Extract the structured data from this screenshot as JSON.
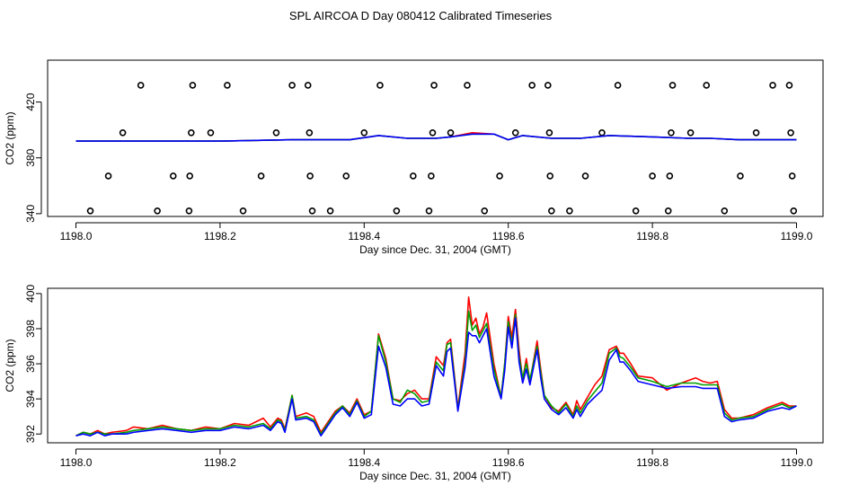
{
  "chart_data": [
    {
      "type": "line",
      "title": "SPL AIRCOA D  Day 080412  Calibrated Timeseries",
      "xlabel": "Day since Dec. 31, 2004 (GMT)",
      "ylabel": "CO2 (ppm)",
      "xlim": [
        1198.0,
        1199.0
      ],
      "ylim": [
        338,
        450
      ],
      "xticks": [
        1198.0,
        1198.2,
        1198.4,
        1198.6,
        1198.8,
        1199.0
      ],
      "xtick_labels": [
        "1198.0",
        "1198.2",
        "1198.4",
        "1198.6",
        "1198.8",
        "1199.0"
      ],
      "yticks": [
        340,
        380,
        420
      ],
      "ytick_labels": [
        "340",
        "380",
        "420"
      ],
      "series": [
        {
          "name": "red",
          "color": "#ff0000",
          "x": [
            1198.0,
            1198.1,
            1198.2,
            1198.3,
            1198.38,
            1198.42,
            1198.46,
            1198.5,
            1198.52,
            1198.55,
            1198.58,
            1198.6,
            1198.62,
            1198.66,
            1198.7,
            1198.74,
            1198.8,
            1198.85,
            1198.88,
            1198.92,
            1199.0
          ],
          "y": [
            392,
            392,
            392,
            393,
            393,
            396,
            394,
            394,
            395,
            398,
            397,
            393,
            396,
            394,
            394,
            396,
            395,
            394,
            394,
            393,
            393
          ]
        },
        {
          "name": "green",
          "color": "#00a000",
          "x": [
            1198.0,
            1198.1,
            1198.2,
            1198.3,
            1198.38,
            1198.42,
            1198.46,
            1198.5,
            1198.52,
            1198.55,
            1198.58,
            1198.6,
            1198.62,
            1198.66,
            1198.7,
            1198.74,
            1198.8,
            1198.85,
            1198.88,
            1198.92,
            1199.0
          ],
          "y": [
            392,
            392,
            392,
            393,
            393,
            396,
            394,
            394,
            395,
            397,
            397,
            393,
            396,
            394,
            394,
            396,
            395,
            394,
            394,
            393,
            393
          ]
        },
        {
          "name": "blue",
          "color": "#0000ff",
          "x": [
            1198.0,
            1198.1,
            1198.2,
            1198.3,
            1198.38,
            1198.42,
            1198.46,
            1198.5,
            1198.52,
            1198.55,
            1198.58,
            1198.6,
            1198.62,
            1198.66,
            1198.7,
            1198.74,
            1198.8,
            1198.85,
            1198.88,
            1198.92,
            1199.0
          ],
          "y": [
            392,
            392,
            392,
            393,
            393,
            396,
            394,
            394,
            395,
            397,
            397,
            393,
            396,
            394,
            394,
            396,
            395,
            394,
            394,
            393,
            393
          ]
        }
      ],
      "markers": {
        "name": "open circles",
        "color": "#000000",
        "x": [
          1198.02,
          1198.045,
          1198.065,
          1198.09,
          1198.113,
          1198.135,
          1198.157,
          1198.158,
          1198.16,
          1198.162,
          1198.187,
          1198.21,
          1198.232,
          1198.257,
          1198.278,
          1198.3,
          1198.322,
          1198.324,
          1198.325,
          1198.328,
          1198.353,
          1198.375,
          1198.4,
          1198.422,
          1198.445,
          1198.468,
          1198.49,
          1198.493,
          1198.495,
          1198.497,
          1198.52,
          1198.543,
          1198.567,
          1198.588,
          1198.61,
          1198.633,
          1198.655,
          1198.657,
          1198.658,
          1198.66,
          1198.685,
          1198.707,
          1198.73,
          1198.752,
          1198.777,
          1198.8,
          1198.822,
          1198.824,
          1198.826,
          1198.828,
          1198.853,
          1198.875,
          1198.9,
          1198.922,
          1198.944,
          1198.967,
          1198.99,
          1198.992,
          1198.994,
          1198.996
        ],
        "y": [
          342,
          367,
          398,
          432,
          342,
          367,
          342,
          367,
          398,
          432,
          398,
          432,
          342,
          367,
          398,
          432,
          432,
          398,
          367,
          342,
          342,
          367,
          398,
          432,
          342,
          367,
          342,
          367,
          398,
          432,
          398,
          432,
          342,
          367,
          398,
          432,
          432,
          398,
          367,
          342,
          342,
          367,
          398,
          432,
          342,
          367,
          342,
          367,
          398,
          432,
          398,
          432,
          342,
          367,
          398,
          432,
          432,
          398,
          367,
          342
        ]
      }
    },
    {
      "type": "line",
      "title": "",
      "xlabel": "Day since Dec. 31, 2004 (GMT)",
      "ylabel": "CO2 (ppm)",
      "xlim": [
        1198.0,
        1199.0
      ],
      "ylim": [
        391.5,
        400.3
      ],
      "xticks": [
        1198.0,
        1198.2,
        1198.4,
        1198.6,
        1198.8,
        1199.0
      ],
      "xtick_labels": [
        "1198.0",
        "1198.2",
        "1198.4",
        "1198.6",
        "1198.8",
        "1199.0"
      ],
      "yticks": [
        392,
        394,
        396,
        398,
        400
      ],
      "ytick_labels": [
        "392",
        "394",
        "396",
        "398",
        "400"
      ],
      "series": [
        {
          "name": "red",
          "color": "#ff0000",
          "x": [
            1198.0,
            1198.01,
            1198.02,
            1198.03,
            1198.04,
            1198.05,
            1198.07,
            1198.08,
            1198.1,
            1198.12,
            1198.14,
            1198.16,
            1198.18,
            1198.2,
            1198.22,
            1198.24,
            1198.26,
            1198.27,
            1198.28,
            1198.285,
            1198.29,
            1198.3,
            1198.305,
            1198.32,
            1198.33,
            1198.34,
            1198.355,
            1198.36,
            1198.37,
            1198.38,
            1198.39,
            1198.4,
            1198.41,
            1198.42,
            1198.43,
            1198.44,
            1198.45,
            1198.46,
            1198.47,
            1198.48,
            1198.49,
            1198.5,
            1198.51,
            1198.515,
            1198.52,
            1198.53,
            1198.54,
            1198.545,
            1198.55,
            1198.555,
            1198.56,
            1198.565,
            1198.57,
            1198.58,
            1198.59,
            1198.595,
            1198.6,
            1198.605,
            1198.61,
            1198.615,
            1198.62,
            1198.625,
            1198.63,
            1198.64,
            1198.645,
            1198.65,
            1198.66,
            1198.67,
            1198.68,
            1198.69,
            1198.695,
            1198.7,
            1198.71,
            1198.72,
            1198.73,
            1198.74,
            1198.75,
            1198.755,
            1198.76,
            1198.77,
            1198.78,
            1198.8,
            1198.82,
            1198.84,
            1198.86,
            1198.87,
            1198.88,
            1198.89,
            1198.9,
            1198.91,
            1198.92,
            1198.94,
            1198.96,
            1198.98,
            1198.99,
            1199.0
          ],
          "y": [
            391.9,
            392.1,
            392.0,
            392.2,
            392.0,
            392.1,
            392.2,
            392.4,
            392.3,
            392.5,
            392.3,
            392.2,
            392.4,
            392.3,
            392.6,
            392.5,
            392.9,
            392.4,
            392.9,
            392.8,
            392.3,
            394.2,
            393.0,
            393.2,
            393.0,
            392.1,
            393.0,
            393.3,
            393.6,
            393.2,
            394.0,
            393.1,
            393.3,
            397.7,
            396.3,
            394.0,
            393.9,
            394.3,
            394.5,
            394.0,
            394.0,
            396.4,
            395.9,
            397.2,
            397.4,
            393.5,
            396.6,
            399.8,
            398.2,
            398.6,
            397.7,
            398.1,
            398.9,
            396.0,
            394.1,
            396.0,
            398.7,
            397.5,
            399.1,
            396.8,
            395.1,
            396.3,
            395.0,
            397.3,
            395.7,
            394.2,
            393.5,
            393.3,
            393.8,
            393.1,
            393.9,
            393.4,
            394.1,
            394.8,
            395.3,
            396.8,
            397.0,
            396.6,
            396.6,
            396.0,
            395.3,
            395.2,
            394.5,
            394.9,
            395.2,
            395.0,
            394.9,
            395.0,
            393.4,
            392.9,
            392.9,
            393.1,
            393.5,
            393.8,
            393.6,
            393.6
          ]
        },
        {
          "name": "green",
          "color": "#00a000",
          "x": [
            1198.0,
            1198.01,
            1198.02,
            1198.03,
            1198.04,
            1198.05,
            1198.07,
            1198.08,
            1198.1,
            1198.12,
            1198.14,
            1198.16,
            1198.18,
            1198.2,
            1198.22,
            1198.24,
            1198.26,
            1198.27,
            1198.28,
            1198.285,
            1198.29,
            1198.3,
            1198.305,
            1198.32,
            1198.33,
            1198.34,
            1198.355,
            1198.36,
            1198.37,
            1198.38,
            1198.39,
            1198.4,
            1198.41,
            1198.42,
            1198.43,
            1198.44,
            1198.45,
            1198.46,
            1198.47,
            1198.48,
            1198.49,
            1198.5,
            1198.51,
            1198.515,
            1198.52,
            1198.53,
            1198.54,
            1198.545,
            1198.55,
            1198.555,
            1198.56,
            1198.565,
            1198.57,
            1198.58,
            1198.59,
            1198.595,
            1198.6,
            1198.605,
            1198.61,
            1198.615,
            1198.62,
            1198.625,
            1198.63,
            1198.64,
            1198.645,
            1198.65,
            1198.66,
            1198.67,
            1198.68,
            1198.69,
            1198.695,
            1198.7,
            1198.71,
            1198.72,
            1198.73,
            1198.74,
            1198.75,
            1198.755,
            1198.76,
            1198.77,
            1198.78,
            1198.8,
            1198.82,
            1198.84,
            1198.86,
            1198.87,
            1198.88,
            1198.89,
            1198.9,
            1198.91,
            1198.92,
            1198.94,
            1198.96,
            1198.98,
            1198.99,
            1199.0
          ],
          "y": [
            391.9,
            392.1,
            392.0,
            392.1,
            392.0,
            392.0,
            392.1,
            392.2,
            392.3,
            392.4,
            392.3,
            392.2,
            392.3,
            392.3,
            392.5,
            392.4,
            392.6,
            392.3,
            392.8,
            392.7,
            392.2,
            394.2,
            392.9,
            393.0,
            392.8,
            392.0,
            392.9,
            393.2,
            393.6,
            393.1,
            393.9,
            393.0,
            393.3,
            397.6,
            396.1,
            394.0,
            393.8,
            394.5,
            394.3,
            393.8,
            393.9,
            396.1,
            395.6,
            397.1,
            397.2,
            393.4,
            396.1,
            399.0,
            397.9,
            398.2,
            397.5,
            397.9,
            398.3,
            395.7,
            394.1,
            396.0,
            398.4,
            397.1,
            398.8,
            396.4,
            395.2,
            396.0,
            395.1,
            397.0,
            395.5,
            394.2,
            393.6,
            393.2,
            393.7,
            393.0,
            393.6,
            393.2,
            393.9,
            394.4,
            394.9,
            396.6,
            396.9,
            396.4,
            396.3,
            395.8,
            395.2,
            395.0,
            394.7,
            394.9,
            394.9,
            394.8,
            394.8,
            394.8,
            393.2,
            392.8,
            392.9,
            393.0,
            393.4,
            393.7,
            393.5,
            393.6
          ]
        },
        {
          "name": "blue",
          "color": "#0000ff",
          "x": [
            1198.0,
            1198.01,
            1198.02,
            1198.03,
            1198.04,
            1198.05,
            1198.07,
            1198.08,
            1198.1,
            1198.12,
            1198.14,
            1198.16,
            1198.18,
            1198.2,
            1198.22,
            1198.24,
            1198.26,
            1198.27,
            1198.28,
            1198.285,
            1198.29,
            1198.3,
            1198.305,
            1198.32,
            1198.33,
            1198.34,
            1198.355,
            1198.36,
            1198.37,
            1198.38,
            1198.39,
            1198.4,
            1198.41,
            1198.42,
            1198.43,
            1198.44,
            1198.45,
            1198.46,
            1198.47,
            1198.48,
            1198.49,
            1198.5,
            1198.51,
            1198.515,
            1198.52,
            1198.53,
            1198.54,
            1198.545,
            1198.55,
            1198.555,
            1198.56,
            1198.565,
            1198.57,
            1198.58,
            1198.59,
            1198.595,
            1198.6,
            1198.605,
            1198.61,
            1198.615,
            1198.62,
            1198.625,
            1198.63,
            1198.64,
            1198.645,
            1198.65,
            1198.66,
            1198.67,
            1198.68,
            1198.69,
            1198.695,
            1198.7,
            1198.71,
            1198.72,
            1198.73,
            1198.74,
            1198.75,
            1198.755,
            1198.76,
            1198.77,
            1198.78,
            1198.8,
            1198.82,
            1198.84,
            1198.86,
            1198.87,
            1198.88,
            1198.89,
            1198.9,
            1198.91,
            1198.92,
            1198.94,
            1198.96,
            1198.98,
            1198.99,
            1199.0
          ],
          "y": [
            391.9,
            392.0,
            391.9,
            392.1,
            391.9,
            392.0,
            392.0,
            392.1,
            392.2,
            392.3,
            392.2,
            392.1,
            392.2,
            392.2,
            392.4,
            392.3,
            392.5,
            392.2,
            392.7,
            392.6,
            392.1,
            394.0,
            392.8,
            392.9,
            392.7,
            391.9,
            392.8,
            393.1,
            393.5,
            393.0,
            393.8,
            392.9,
            393.1,
            397.0,
            395.8,
            393.7,
            393.6,
            394.0,
            394.0,
            393.6,
            393.7,
            395.9,
            395.3,
            396.7,
            396.9,
            393.3,
            395.8,
            397.8,
            397.6,
            397.6,
            397.2,
            397.6,
            398.0,
            395.3,
            394.0,
            395.6,
            398.1,
            396.9,
            398.6,
            396.1,
            394.9,
            395.7,
            394.8,
            396.8,
            395.2,
            394.0,
            393.4,
            393.1,
            393.5,
            392.9,
            393.4,
            393.0,
            393.7,
            394.1,
            394.5,
            396.2,
            396.8,
            396.1,
            396.1,
            395.6,
            395.0,
            394.8,
            394.6,
            394.7,
            394.7,
            394.6,
            394.6,
            394.6,
            393.0,
            392.7,
            392.8,
            392.9,
            393.3,
            393.5,
            393.4,
            393.6
          ]
        }
      ]
    }
  ]
}
